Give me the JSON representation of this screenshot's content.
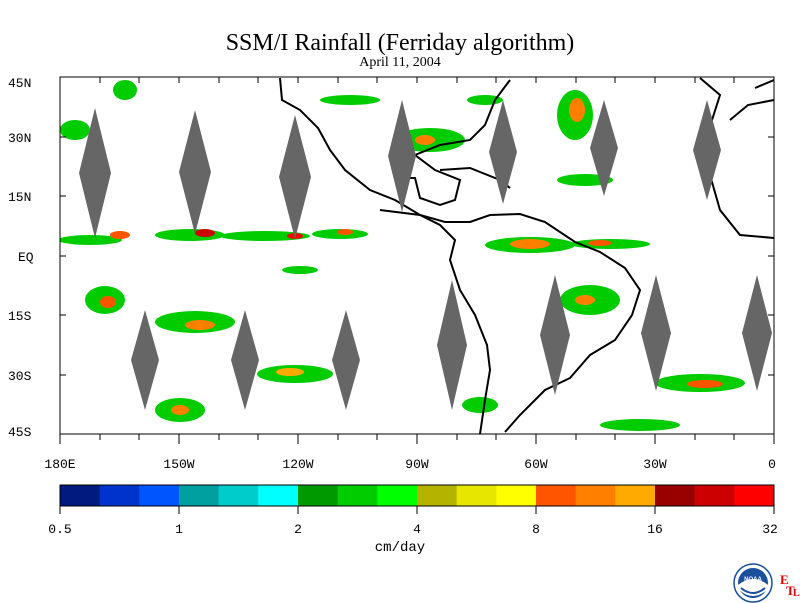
{
  "title": "SSM/I Rainfall (Ferriday algorithm)",
  "subtitle": "April 11, 2004",
  "lat_labels": [
    "45N",
    "30N",
    "15N",
    "EQ",
    "15S",
    "30S",
    "45S"
  ],
  "lon_labels": [
    "180E",
    "150W",
    "120W",
    "90W",
    "60W",
    "30W",
    "0"
  ],
  "colorbar": {
    "unit": "cm/day",
    "tick_labels": [
      "0.5",
      "1",
      "2",
      "4",
      "8",
      "16",
      "32"
    ],
    "colors": [
      "#001a80",
      "#0033cc",
      "#0055ff",
      "#00a0a0",
      "#00cccc",
      "#00ffff",
      "#009900",
      "#00cc00",
      "#00ff00",
      "#b3b300",
      "#e6e600",
      "#ffff00",
      "#ff5500",
      "#ff8000",
      "#ffaa00",
      "#990000",
      "#cc0000",
      "#ff0000"
    ]
  },
  "logo": {
    "text": "NOAA",
    "etl_letters": [
      "E",
      "T",
      "L"
    ]
  }
}
